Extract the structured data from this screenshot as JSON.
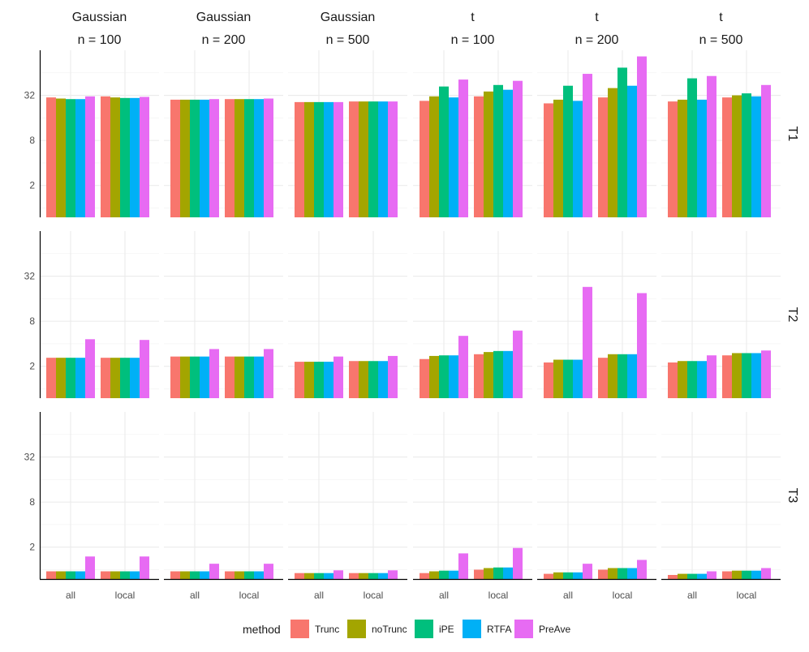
{
  "chart_data": {
    "type": "bar",
    "layout": "facet-grid",
    "y_scale": "log2",
    "ylim": [
      0.75,
      128
    ],
    "y_ticks": [
      2,
      8,
      32
    ],
    "y_tick_labels": [
      "2",
      "8",
      "32"
    ],
    "grid": true,
    "legend_position": "bottom",
    "legend_title": "method",
    "categories": [
      "all",
      "local"
    ],
    "col_facets": [
      {
        "top": "Gaussian",
        "bottom": "n = 100"
      },
      {
        "top": "Gaussian",
        "bottom": "n = 200"
      },
      {
        "top": "Gaussian",
        "bottom": "n = 500"
      },
      {
        "top": "t",
        "bottom": "n = 100"
      },
      {
        "top": "t",
        "bottom": "n = 200"
      },
      {
        "top": "t",
        "bottom": "n = 500"
      }
    ],
    "row_facets": [
      "T1",
      "T2",
      "T3"
    ],
    "methods": [
      {
        "name": "Trunc",
        "color": "#F8766D"
      },
      {
        "name": "noTrunc",
        "color": "#A3A500"
      },
      {
        "name": "iPE",
        "color": "#00BF7D"
      },
      {
        "name": "RTFA",
        "color": "#00B0F6"
      },
      {
        "name": "PreAve",
        "color": "#E76BF3"
      }
    ],
    "panels": [
      [
        [
          [
            30,
            29,
            28.5,
            28.5,
            31
          ],
          [
            31,
            30,
            29.5,
            29.5,
            30.5
          ]
        ],
        [
          [
            28,
            28,
            28,
            28,
            28.5
          ],
          [
            28.5,
            28.5,
            28.5,
            28.5,
            29
          ]
        ],
        [
          [
            26,
            26,
            26,
            26,
            26
          ],
          [
            26.5,
            26.5,
            26.5,
            26.5,
            26.5
          ]
        ],
        [
          [
            27,
            31,
            42,
            30,
            52
          ],
          [
            31,
            36,
            44,
            38,
            50
          ]
        ],
        [
          [
            25,
            28,
            43,
            27,
            62
          ],
          [
            30,
            40,
            75,
            43,
            106
          ]
        ],
        [
          [
            26.5,
            28,
            54,
            28,
            58
          ],
          [
            30,
            32,
            34,
            31,
            44
          ]
        ]
      ],
      [
        [
          [
            2.6,
            2.6,
            2.6,
            2.6,
            4.6
          ],
          [
            2.6,
            2.6,
            2.6,
            2.6,
            4.5
          ]
        ],
        [
          [
            2.7,
            2.7,
            2.7,
            2.7,
            3.4
          ],
          [
            2.7,
            2.7,
            2.7,
            2.7,
            3.4
          ]
        ],
        [
          [
            2.3,
            2.3,
            2.3,
            2.3,
            2.7
          ],
          [
            2.35,
            2.35,
            2.35,
            2.35,
            2.75
          ]
        ],
        [
          [
            2.5,
            2.75,
            2.8,
            2.8,
            5.1
          ],
          [
            2.9,
            3.1,
            3.2,
            3.2,
            6.0
          ]
        ],
        [
          [
            2.25,
            2.45,
            2.45,
            2.45,
            23
          ],
          [
            2.6,
            2.9,
            2.9,
            2.9,
            19
          ]
        ],
        [
          [
            2.25,
            2.35,
            2.35,
            2.35,
            2.8
          ],
          [
            2.8,
            3.0,
            3.0,
            3.0,
            3.25
          ]
        ]
      ],
      [
        [
          [
            0.95,
            0.95,
            0.95,
            0.95,
            1.5
          ],
          [
            0.95,
            0.95,
            0.95,
            0.95,
            1.5
          ]
        ],
        [
          [
            0.95,
            0.95,
            0.95,
            0.95,
            1.2
          ],
          [
            0.95,
            0.95,
            0.95,
            0.95,
            1.2
          ]
        ],
        [
          [
            0.9,
            0.9,
            0.9,
            0.9,
            0.98
          ],
          [
            0.9,
            0.9,
            0.9,
            0.9,
            0.98
          ]
        ],
        [
          [
            0.9,
            0.95,
            0.97,
            0.97,
            1.65
          ],
          [
            1.0,
            1.05,
            1.07,
            1.07,
            1.95
          ]
        ],
        [
          [
            0.88,
            0.92,
            0.92,
            0.92,
            1.2
          ],
          [
            1.0,
            1.05,
            1.05,
            1.05,
            1.35
          ]
        ],
        [
          [
            0.85,
            0.88,
            0.88,
            0.88,
            0.95
          ],
          [
            0.95,
            0.97,
            0.97,
            0.97,
            1.05
          ]
        ]
      ]
    ]
  }
}
